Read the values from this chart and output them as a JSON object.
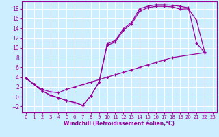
{
  "xlabel": "Windchill (Refroidissement éolien,°C)",
  "bg_color": "#cceeff",
  "grid_color": "#ffffff",
  "line_color": "#990099",
  "xlim": [
    -0.5,
    23.5
  ],
  "ylim": [
    -3.2,
    19.5
  ],
  "xticks": [
    0,
    1,
    2,
    3,
    4,
    5,
    6,
    7,
    8,
    9,
    10,
    11,
    12,
    13,
    14,
    15,
    16,
    17,
    18,
    19,
    20,
    21,
    22,
    23
  ],
  "yticks": [
    -2,
    0,
    2,
    4,
    6,
    8,
    10,
    12,
    14,
    16,
    18
  ],
  "curves": [
    {
      "x": [
        0,
        1,
        2,
        3,
        4,
        5,
        6,
        7,
        8,
        9,
        10,
        11,
        12,
        13,
        14,
        15,
        16,
        17,
        18,
        19,
        20,
        21,
        22
      ],
      "y": [
        3.8,
        2.5,
        1.2,
        0.3,
        -0.2,
        -0.8,
        -1.2,
        -1.8,
        0.2,
        3.0,
        10.8,
        11.5,
        13.9,
        15.2,
        18.0,
        18.5,
        18.8,
        18.8,
        18.7,
        18.5,
        18.2,
        11.0,
        9.0
      ]
    },
    {
      "x": [
        0,
        1,
        2,
        3,
        4,
        5,
        6,
        7,
        8,
        9,
        10,
        11,
        12,
        13,
        14,
        15,
        16,
        17,
        18,
        19,
        20,
        21,
        22
      ],
      "y": [
        3.8,
        2.5,
        1.2,
        0.3,
        -0.2,
        -0.8,
        -1.2,
        -1.8,
        0.2,
        3.0,
        10.5,
        11.2,
        13.6,
        14.9,
        17.5,
        18.2,
        18.5,
        18.5,
        18.4,
        17.9,
        18.0,
        15.6,
        9.2
      ]
    },
    {
      "x": [
        0,
        1,
        2,
        3,
        4,
        5,
        6,
        7,
        8,
        9,
        10,
        11,
        12,
        13,
        14,
        15,
        16,
        17,
        18,
        22
      ],
      "y": [
        3.8,
        2.5,
        1.5,
        1.0,
        0.8,
        1.5,
        2.0,
        2.5,
        3.0,
        3.5,
        4.0,
        4.5,
        5.0,
        5.5,
        6.0,
        6.5,
        7.0,
        7.5,
        8.0,
        9.0
      ]
    }
  ]
}
